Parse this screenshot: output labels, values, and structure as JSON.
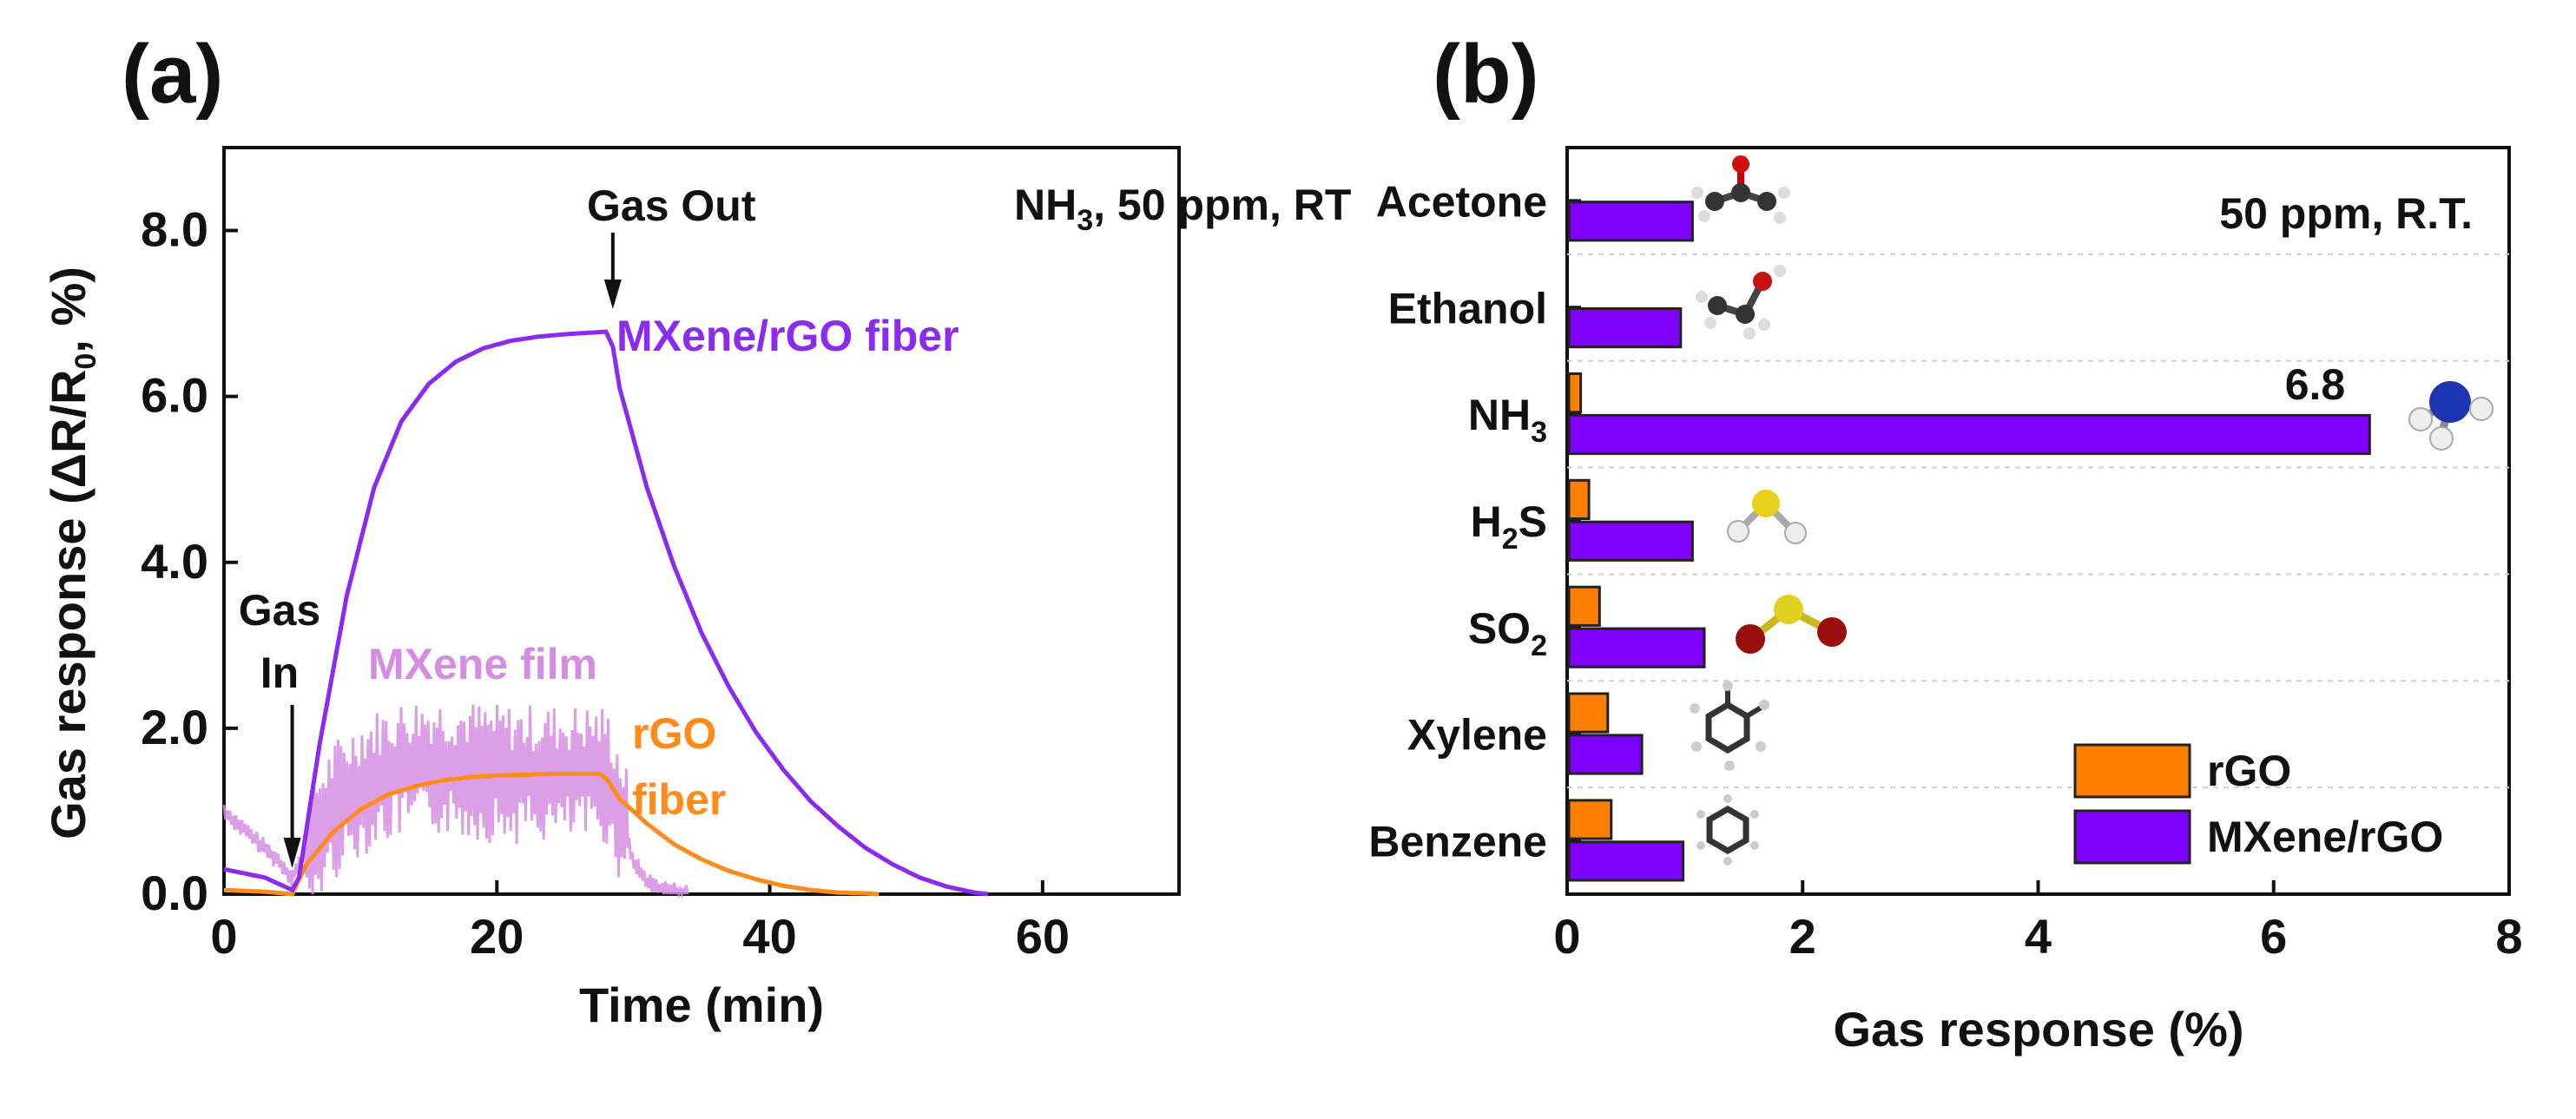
{
  "chart_data": [
    {
      "panel_label": "(a)",
      "type": "line",
      "xlabel": "Time (min)",
      "ylabel_parts": [
        "Gas response (ΔR/R",
        "0",
        ", %)"
      ],
      "xlim": [
        0,
        70
      ],
      "ylim": [
        0,
        9
      ],
      "xticks": [
        "0",
        "20",
        "40",
        "60"
      ],
      "yticks": [
        "0.0",
        "2.0",
        "4.0",
        "6.0",
        "8.0"
      ],
      "condition_parts": [
        "NH",
        "3",
        ", 50 ppm, RT"
      ],
      "annotations": {
        "gas_in_line1": "Gas",
        "gas_in_line2": "In",
        "gas_out": "Gas Out",
        "gas_in_time": 5,
        "gas_out_time": 28.5
      },
      "series": [
        {
          "name": "MXene/rGO fiber",
          "color": "#8b2bf2",
          "x": [
            0,
            3,
            5,
            5.5,
            7,
            9,
            11,
            13,
            15,
            17,
            19,
            21,
            23,
            25,
            27,
            28,
            28.5,
            29,
            31,
            33,
            35,
            37,
            39,
            41,
            43,
            45,
            47,
            49,
            51,
            53,
            55,
            56
          ],
          "y": [
            0.3,
            0.2,
            0.05,
            0.2,
            1.8,
            3.6,
            4.9,
            5.7,
            6.15,
            6.42,
            6.58,
            6.67,
            6.72,
            6.75,
            6.77,
            6.78,
            6.6,
            6.1,
            4.9,
            3.95,
            3.15,
            2.5,
            1.95,
            1.5,
            1.12,
            0.82,
            0.56,
            0.36,
            0.2,
            0.09,
            0.02,
            0.0
          ]
        },
        {
          "name_line1": "rGO",
          "name_line2": "fiber",
          "color": "#ff8c1a",
          "x": [
            0,
            3,
            5,
            6,
            8,
            10,
            12,
            14,
            16,
            18,
            20,
            22,
            24,
            26,
            27.5,
            28,
            29,
            31,
            33,
            35,
            37,
            39,
            41,
            43,
            45,
            47,
            48
          ],
          "y": [
            0.05,
            0.03,
            0.0,
            0.35,
            0.75,
            1.02,
            1.2,
            1.3,
            1.37,
            1.41,
            1.43,
            1.44,
            1.45,
            1.45,
            1.45,
            1.4,
            1.15,
            0.85,
            0.6,
            0.42,
            0.28,
            0.18,
            0.1,
            0.05,
            0.02,
            0.01,
            0.0
          ]
        },
        {
          "name": "MXene film",
          "color": "#d58de3",
          "noisy": true,
          "x": [
            0,
            2,
            4,
            5,
            6,
            8,
            10,
            12,
            14,
            16,
            18,
            20,
            22,
            24,
            26,
            28,
            29,
            30,
            31,
            32,
            33,
            34
          ],
          "y": [
            1.0,
            0.7,
            0.4,
            0.2,
            0.5,
            1.0,
            1.3,
            1.45,
            1.55,
            1.55,
            1.5,
            1.45,
            1.45,
            1.45,
            1.45,
            1.45,
            1.0,
            0.4,
            0.15,
            0.07,
            0.03,
            0.0
          ]
        }
      ]
    },
    {
      "panel_label": "(b)",
      "type": "bar",
      "orientation": "horizontal",
      "xlabel": "Gas response (%)",
      "xlim": [
        0,
        8
      ],
      "xticks": [
        "0",
        "2",
        "4",
        "6",
        "8"
      ],
      "condition": "50 ppm, R.T.",
      "categories": [
        {
          "main": "Acetone",
          "sub": "",
          "tail": ""
        },
        {
          "main": "Ethanol",
          "sub": "",
          "tail": ""
        },
        {
          "main": "NH",
          "sub": "3",
          "tail": ""
        },
        {
          "main": "H",
          "sub": "2",
          "tail": "S"
        },
        {
          "main": "SO",
          "sub": "2",
          "tail": ""
        },
        {
          "main": "Xylene",
          "sub": "",
          "tail": ""
        },
        {
          "main": "Benzene",
          "sub": "",
          "tail": ""
        }
      ],
      "series": [
        {
          "name": "rGO",
          "color": "#ff8000",
          "values": [
            0,
            0,
            0.1,
            0.17,
            0.26,
            0.33,
            0.36
          ]
        },
        {
          "name": "MXene/rGO",
          "color": "#8000ff",
          "values": [
            1.05,
            0.95,
            6.8,
            1.05,
            1.15,
            0.62,
            0.97
          ]
        }
      ],
      "data_label": "6.8",
      "legend": "bottom-right",
      "molecules": [
        "acetone-molecule-icon",
        "ethanol-molecule-icon",
        "ammonia-molecule-icon",
        "hydrogen-sulfide-molecule-icon",
        "sulfur-dioxide-molecule-icon",
        "xylene-molecule-icon",
        "benzene-molecule-icon"
      ]
    }
  ]
}
